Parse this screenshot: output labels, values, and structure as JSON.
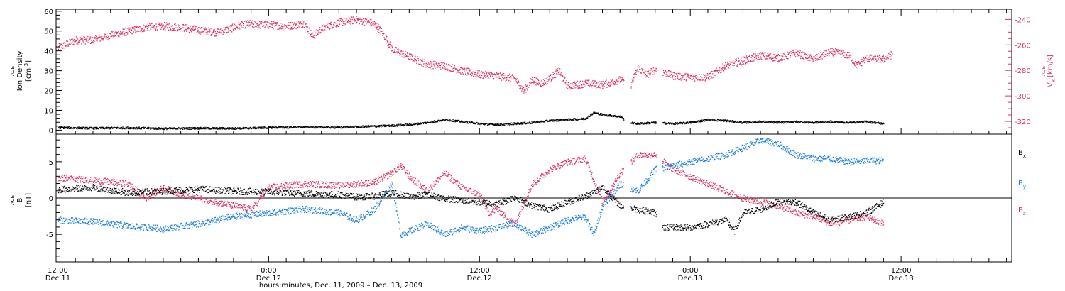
{
  "colors": {
    "black": "#000000",
    "pink": "#e0305e",
    "blue": "#1a7fe0"
  },
  "xaxis": {
    "label": "hours:minutes, Dec. 11, 2009 – Dec. 13, 2009",
    "ticks": [
      {
        "time": "12:00",
        "date": "Dec.11",
        "hour": 12
      },
      {
        "time": "0:00",
        "date": "Dec.12",
        "hour": 24
      },
      {
        "time": "12:00",
        "date": "Dec.12",
        "hour": 36
      },
      {
        "time": "0:00",
        "date": "Dec.13",
        "hour": 48
      },
      {
        "time": "12:00",
        "date": "Dec.13",
        "hour": 60
      }
    ]
  },
  "chart_data": [
    {
      "type": "scatter",
      "xlim": [
        11.9,
        66.3
      ],
      "left_axis": {
        "label_top": "ACE",
        "label_mid": "Ion Density",
        "unit_open": "[cm",
        "unit_sup": "-3",
        "unit_close": "]",
        "ylim": [
          -2,
          61
        ],
        "ticks": [
          0,
          10,
          20,
          30,
          40,
          50,
          60
        ]
      },
      "right_axis": {
        "label_top": "ACE",
        "label_base": "V",
        "label_sub": "x",
        "unit": "[km/s]",
        "ylim": [
          -330,
          -232
        ],
        "ticks": [
          -240,
          -260,
          -280,
          -300,
          -320
        ]
      },
      "series": [
        {
          "axis": "left",
          "color": "#000000",
          "points": [
            [
              12,
              1.5
            ],
            [
              14,
              1.2
            ],
            [
              16,
              1.4
            ],
            [
              18,
              1.0
            ],
            [
              20,
              1.2
            ],
            [
              22,
              1.1
            ],
            [
              24,
              1.5
            ],
            [
              26,
              1.8
            ],
            [
              28,
              1.6
            ],
            [
              30,
              2.2
            ],
            [
              31,
              2.5
            ],
            [
              32,
              3.0
            ],
            [
              33,
              4.0
            ],
            [
              34,
              5.5
            ],
            [
              35,
              4.5
            ],
            [
              36,
              3.5
            ],
            [
              37,
              3.0
            ],
            [
              38,
              3.5
            ],
            [
              39,
              4.0
            ],
            [
              40,
              5.0
            ],
            [
              41,
              5.5
            ],
            [
              42,
              6.0
            ],
            [
              42.5,
              9.0
            ],
            [
              43,
              8.0
            ],
            [
              44,
              7.0
            ],
            [
              44.5,
              4.0
            ],
            [
              45,
              3.5
            ],
            [
              46,
              4.0
            ],
            [
              47,
              3.5
            ],
            [
              48,
              4.0
            ],
            [
              49,
              5.5
            ],
            [
              50,
              5.0
            ],
            [
              51,
              4.0
            ],
            [
              52,
              4.5
            ],
            [
              53,
              4.0
            ],
            [
              54,
              4.5
            ],
            [
              55,
              4.0
            ],
            [
              56,
              4.5
            ],
            [
              57,
              4.0
            ],
            [
              58,
              4.5
            ],
            [
              59,
              3.5
            ]
          ]
        },
        {
          "axis": "right",
          "color": "#e0305e",
          "points": [
            [
              12,
              -262
            ],
            [
              13,
              -256
            ],
            [
              14,
              -256
            ],
            [
              15,
              -252
            ],
            [
              16,
              -249
            ],
            [
              17,
              -246
            ],
            [
              18,
              -245
            ],
            [
              19,
              -246
            ],
            [
              20,
              -248
            ],
            [
              21,
              -250
            ],
            [
              22,
              -246
            ],
            [
              22.8,
              -243
            ],
            [
              23.5,
              -244
            ],
            [
              24,
              -244
            ],
            [
              25,
              -245
            ],
            [
              26,
              -243
            ],
            [
              26.5,
              -253
            ],
            [
              27,
              -247
            ],
            [
              28,
              -242
            ],
            [
              29,
              -240
            ],
            [
              30,
              -243
            ],
            [
              30.5,
              -251
            ],
            [
              31,
              -263
            ],
            [
              32,
              -269
            ],
            [
              33,
              -275
            ],
            [
              34,
              -276
            ],
            [
              35,
              -280
            ],
            [
              36,
              -283
            ],
            [
              37,
              -284
            ],
            [
              38,
              -286
            ],
            [
              38.5,
              -296
            ],
            [
              39,
              -287
            ],
            [
              39.5,
              -290
            ],
            [
              40,
              -286
            ],
            [
              40.5,
              -280
            ],
            [
              41,
              -292
            ],
            [
              42,
              -290
            ],
            [
              43,
              -291
            ],
            [
              44,
              -287
            ],
            [
              44.5,
              -294
            ],
            [
              45,
              -278
            ],
            [
              45.5,
              -283
            ],
            [
              46,
              -279
            ],
            [
              47,
              -284
            ],
            [
              48,
              -285
            ],
            [
              49,
              -285
            ],
            [
              50,
              -276
            ],
            [
              51,
              -272
            ],
            [
              52,
              -268
            ],
            [
              53,
              -270
            ],
            [
              54,
              -266
            ],
            [
              55,
              -271
            ],
            [
              56,
              -265
            ],
            [
              57,
              -268
            ],
            [
              57.5,
              -276
            ],
            [
              58,
              -270
            ],
            [
              59,
              -271
            ],
            [
              59.5,
              -267
            ]
          ]
        }
      ]
    },
    {
      "type": "scatter",
      "xlim": [
        11.9,
        66.3
      ],
      "left_axis": {
        "label_top": "ACE",
        "label_mid": "B",
        "unit": "[nT]",
        "ylim": [
          -8.8,
          8.8
        ],
        "ticks": [
          5,
          0,
          -5
        ]
      },
      "zero_line": true,
      "series": [
        {
          "name_base": "B",
          "name_sub": "x",
          "color": "#000000",
          "points": [
            [
              12,
              1.2
            ],
            [
              14,
              1.5
            ],
            [
              16,
              0.8
            ],
            [
              18,
              1.0
            ],
            [
              20,
              1.3
            ],
            [
              22,
              1.0
            ],
            [
              24,
              0.9
            ],
            [
              26,
              0.7
            ],
            [
              28,
              0.5
            ],
            [
              29,
              0.2
            ],
            [
              30,
              0.3
            ],
            [
              31,
              0.8
            ],
            [
              32,
              0.2
            ],
            [
              33,
              0.5
            ],
            [
              34,
              0.0
            ],
            [
              35,
              -0.3
            ],
            [
              36,
              -0.5
            ],
            [
              37,
              -0.8
            ],
            [
              38,
              0.2
            ],
            [
              39,
              -1.0
            ],
            [
              40,
              -1.5
            ],
            [
              41,
              -0.5
            ],
            [
              42,
              0.3
            ],
            [
              43,
              1.5
            ],
            [
              44,
              -1.0
            ],
            [
              45,
              -1.5
            ],
            [
              46,
              -2.0
            ],
            [
              46.5,
              -4.0
            ],
            [
              47,
              -4.0
            ],
            [
              48,
              -4.0
            ],
            [
              49,
              -3.5
            ],
            [
              50,
              -3.0
            ],
            [
              50.5,
              -4.5
            ],
            [
              51,
              -2.0
            ],
            [
              52,
              -1.5
            ],
            [
              53,
              -0.5
            ],
            [
              54,
              -0.5
            ],
            [
              55,
              -2.0
            ],
            [
              56,
              -3.0
            ],
            [
              57,
              -2.5
            ],
            [
              58,
              -2.0
            ],
            [
              59,
              -0.5
            ]
          ]
        },
        {
          "name_base": "B",
          "name_sub": "y",
          "color": "#1a7fe0",
          "points": [
            [
              12,
              -3.0
            ],
            [
              14,
              -3.2
            ],
            [
              16,
              -3.8
            ],
            [
              18,
              -4.2
            ],
            [
              20,
              -3.5
            ],
            [
              22,
              -2.5
            ],
            [
              24,
              -2.0
            ],
            [
              26,
              -1.5
            ],
            [
              28,
              -2.0
            ],
            [
              29,
              -3.0
            ],
            [
              30,
              -1.5
            ],
            [
              31,
              2.0
            ],
            [
              31.5,
              -5.0
            ],
            [
              32,
              -4.5
            ],
            [
              33,
              -3.5
            ],
            [
              34,
              -5.0
            ],
            [
              35,
              -4.0
            ],
            [
              36,
              -4.5
            ],
            [
              37,
              -4.0
            ],
            [
              38,
              -3.5
            ],
            [
              39,
              -5.0
            ],
            [
              40,
              -4.0
            ],
            [
              41,
              -3.0
            ],
            [
              42,
              -2.5
            ],
            [
              42.5,
              -5.0
            ],
            [
              43,
              -1.0
            ],
            [
              44,
              2.0
            ],
            [
              45,
              1.0
            ],
            [
              46,
              4.0
            ],
            [
              47,
              4.5
            ],
            [
              48,
              5.0
            ],
            [
              49,
              5.5
            ],
            [
              50,
              6.0
            ],
            [
              51,
              7.0
            ],
            [
              52,
              8.0
            ],
            [
              53,
              7.5
            ],
            [
              54,
              6.0
            ],
            [
              55,
              5.5
            ],
            [
              56,
              5.5
            ],
            [
              57,
              5.0
            ],
            [
              58,
              5.2
            ],
            [
              59,
              5.2
            ]
          ]
        },
        {
          "name_base": "B",
          "name_sub": "z",
          "color": "#e0305e",
          "points": [
            [
              12,
              2.8
            ],
            [
              14,
              2.5
            ],
            [
              16,
              2.0
            ],
            [
              17,
              0.0
            ],
            [
              18,
              1.5
            ],
            [
              19,
              0.5
            ],
            [
              20,
              0.0
            ],
            [
              21,
              -0.5
            ],
            [
              22,
              -1.0
            ],
            [
              23,
              -1.5
            ],
            [
              24,
              1.5
            ],
            [
              26,
              2.0
            ],
            [
              28,
              1.8
            ],
            [
              29,
              2.0
            ],
            [
              30,
              2.2
            ],
            [
              31,
              3.5
            ],
            [
              31.5,
              4.5
            ],
            [
              32,
              3.0
            ],
            [
              33,
              1.0
            ],
            [
              34,
              3.5
            ],
            [
              35,
              1.5
            ],
            [
              36,
              0.5
            ],
            [
              36.5,
              -2.0
            ],
            [
              37,
              -1.5
            ],
            [
              38,
              -3.5
            ],
            [
              39,
              2.0
            ],
            [
              40,
              4.0
            ],
            [
              41,
              5.0
            ],
            [
              42,
              5.5
            ],
            [
              43,
              -0.5
            ],
            [
              44,
              3.5
            ],
            [
              45,
              6.0
            ],
            [
              46,
              6.0
            ],
            [
              47,
              4.0
            ],
            [
              48,
              3.0
            ],
            [
              49,
              2.0
            ],
            [
              50,
              1.0
            ],
            [
              51,
              0.0
            ],
            [
              52,
              -0.5
            ],
            [
              53,
              -1.0
            ],
            [
              54,
              -2.0
            ],
            [
              55,
              -2.5
            ],
            [
              56,
              -3.5
            ],
            [
              57,
              -3.0
            ],
            [
              58,
              -2.5
            ],
            [
              59,
              -3.5
            ]
          ]
        }
      ]
    }
  ]
}
